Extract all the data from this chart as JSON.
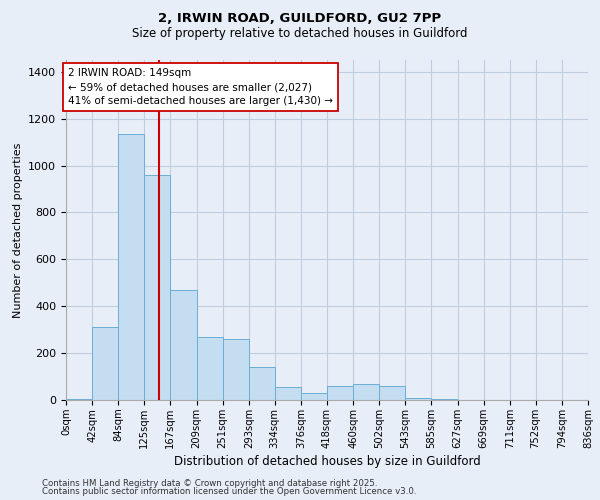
{
  "title1": "2, IRWIN ROAD, GUILDFORD, GU2 7PP",
  "title2": "Size of property relative to detached houses in Guildford",
  "xlabel": "Distribution of detached houses by size in Guildford",
  "ylabel": "Number of detached properties",
  "bar_color": "#c5ddf0",
  "bar_edge_color": "#6baed6",
  "background_color": "#e8eef8",
  "grid_color": "#c0cce0",
  "bin_labels": [
    "0sqm",
    "42sqm",
    "84sqm",
    "125sqm",
    "167sqm",
    "209sqm",
    "251sqm",
    "293sqm",
    "334sqm",
    "376sqm",
    "418sqm",
    "460sqm",
    "502sqm",
    "543sqm",
    "585sqm",
    "627sqm",
    "669sqm",
    "711sqm",
    "752sqm",
    "794sqm",
    "836sqm"
  ],
  "bar_values": [
    5,
    310,
    1135,
    960,
    470,
    270,
    260,
    140,
    55,
    30,
    60,
    70,
    60,
    10,
    5,
    0,
    0,
    0,
    0,
    0
  ],
  "bin_edges": [
    0,
    42,
    84,
    125,
    167,
    209,
    251,
    293,
    334,
    376,
    418,
    460,
    502,
    543,
    585,
    627,
    669,
    711,
    752,
    794,
    836
  ],
  "vline_x": 149,
  "vline_color": "#cc0000",
  "ylim": [
    0,
    1450
  ],
  "yticks": [
    0,
    200,
    400,
    600,
    800,
    1000,
    1200,
    1400
  ],
  "annotation_text": "2 IRWIN ROAD: 149sqm\n← 59% of detached houses are smaller (2,027)\n41% of semi-detached houses are larger (1,430) →",
  "annotation_box_color": "#ffffff",
  "annotation_box_edge": "#cc0000",
  "footer1": "Contains HM Land Registry data © Crown copyright and database right 2025.",
  "footer2": "Contains public sector information licensed under the Open Government Licence v3.0."
}
